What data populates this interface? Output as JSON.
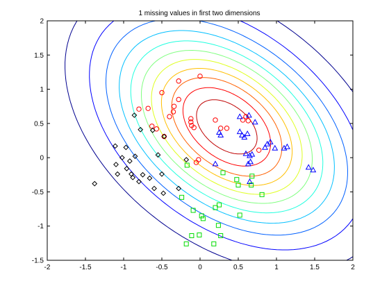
{
  "chart_data": {
    "type": "scatter",
    "title": "1 missing values in first two dimensions",
    "xlabel": "",
    "ylabel": "",
    "xlim": [
      -2,
      2
    ],
    "ylim": [
      -1.5,
      2
    ],
    "xticks": [
      "-2",
      "-1.5",
      "-1",
      "-0.5",
      "0",
      "0.5",
      "1",
      "1.5",
      "2"
    ],
    "yticks": [
      "-1.5",
      "-1",
      "-0.5",
      "0",
      "0.5",
      "1",
      "1.5",
      "2"
    ],
    "grid": false,
    "legend": "none",
    "contour": {
      "center": [
        0.35,
        0.45
      ],
      "sigma_x": 0.95,
      "sigma_y": 0.95,
      "rho": -0.42,
      "levels": 11,
      "colormap": [
        "#00008f",
        "#0000ff",
        "#0060ff",
        "#00bfff",
        "#20ffdf",
        "#80ff80",
        "#dfff20",
        "#ffbf00",
        "#ff6000",
        "#ff0000",
        "#bf0000"
      ]
    },
    "series": [
      {
        "marker": "circle",
        "color": "#ff0000",
        "points": [
          [
            0.0,
            1.19
          ],
          [
            -0.28,
            1.12
          ],
          [
            -0.5,
            0.95
          ],
          [
            -0.28,
            0.85
          ],
          [
            -0.34,
            0.75
          ],
          [
            -0.8,
            0.71
          ],
          [
            -0.68,
            0.72
          ],
          [
            -0.35,
            0.67
          ],
          [
            -0.4,
            0.6
          ],
          [
            -0.57,
            0.42
          ],
          [
            -0.63,
            0.46
          ],
          [
            -0.47,
            0.31
          ],
          [
            -0.12,
            0.57
          ],
          [
            -0.12,
            0.52
          ],
          [
            -0.11,
            0.47
          ],
          [
            -0.08,
            0.44
          ],
          [
            0.2,
            0.55
          ],
          [
            0.27,
            0.43
          ],
          [
            0.35,
            0.43
          ],
          [
            0.56,
            0.55
          ],
          [
            0.6,
            0.6
          ],
          [
            0.63,
            0.54
          ],
          [
            0.77,
            0.11
          ],
          [
            -0.05,
            -0.07
          ],
          [
            -0.02,
            -0.03
          ]
        ]
      },
      {
        "marker": "triangle",
        "color": "#0000ff",
        "points": [
          [
            0.52,
            0.6
          ],
          [
            0.64,
            0.62
          ],
          [
            0.72,
            0.52
          ],
          [
            0.25,
            0.37
          ],
          [
            0.27,
            0.33
          ],
          [
            0.52,
            0.38
          ],
          [
            0.55,
            0.33
          ],
          [
            0.58,
            0.3
          ],
          [
            0.62,
            0.35
          ],
          [
            0.85,
            0.15
          ],
          [
            0.88,
            0.2
          ],
          [
            0.92,
            0.23
          ],
          [
            0.98,
            0.14
          ],
          [
            1.1,
            0.14
          ],
          [
            1.14,
            0.16
          ],
          [
            0.6,
            0.06
          ],
          [
            0.65,
            0.03
          ],
          [
            0.68,
            0.05
          ],
          [
            0.2,
            -0.09
          ],
          [
            0.63,
            -0.09
          ],
          [
            0.66,
            -0.06
          ],
          [
            1.42,
            -0.14
          ],
          [
            1.48,
            -0.18
          ],
          [
            0.65,
            -0.35
          ]
        ]
      },
      {
        "marker": "diamond",
        "color": "#000000",
        "points": [
          [
            -0.86,
            0.62
          ],
          [
            -0.78,
            0.41
          ],
          [
            -0.62,
            0.4
          ],
          [
            -0.47,
            0.31
          ],
          [
            -1.11,
            0.17
          ],
          [
            -0.97,
            0.15
          ],
          [
            -1.02,
            0.0
          ],
          [
            -0.92,
            -0.05
          ],
          [
            -0.85,
            0.02
          ],
          [
            -0.55,
            0.04
          ],
          [
            -1.1,
            -0.1
          ],
          [
            -0.96,
            -0.16
          ],
          [
            -1.08,
            -0.24
          ],
          [
            -0.9,
            -0.24
          ],
          [
            -0.88,
            -0.29
          ],
          [
            -0.75,
            -0.25
          ],
          [
            -0.66,
            -0.3
          ],
          [
            -0.5,
            -0.24
          ],
          [
            -0.18,
            -0.03
          ],
          [
            -0.28,
            -0.45
          ],
          [
            -1.38,
            -0.38
          ],
          [
            -0.8,
            -0.35
          ],
          [
            -0.48,
            -0.52
          ],
          [
            -0.6,
            -0.45
          ]
        ]
      },
      {
        "marker": "square",
        "color": "#00dd00",
        "points": [
          [
            -0.17,
            -0.11
          ],
          [
            0.3,
            -0.22
          ],
          [
            0.48,
            -0.32
          ],
          [
            0.5,
            -0.4
          ],
          [
            0.67,
            -0.4
          ],
          [
            0.81,
            -0.54
          ],
          [
            -0.24,
            -0.58
          ],
          [
            0.25,
            -0.69
          ],
          [
            0.2,
            -0.73
          ],
          [
            -0.09,
            -0.77
          ],
          [
            0.02,
            -0.85
          ],
          [
            0.04,
            -0.89
          ],
          [
            0.52,
            -0.84
          ],
          [
            0.24,
            -0.99
          ],
          [
            -0.01,
            -1.13
          ],
          [
            -0.11,
            -1.14
          ],
          [
            0.27,
            -1.14
          ],
          [
            -0.18,
            -1.26
          ],
          [
            0.18,
            -1.26
          ],
          [
            0.68,
            -0.27
          ]
        ]
      }
    ]
  }
}
